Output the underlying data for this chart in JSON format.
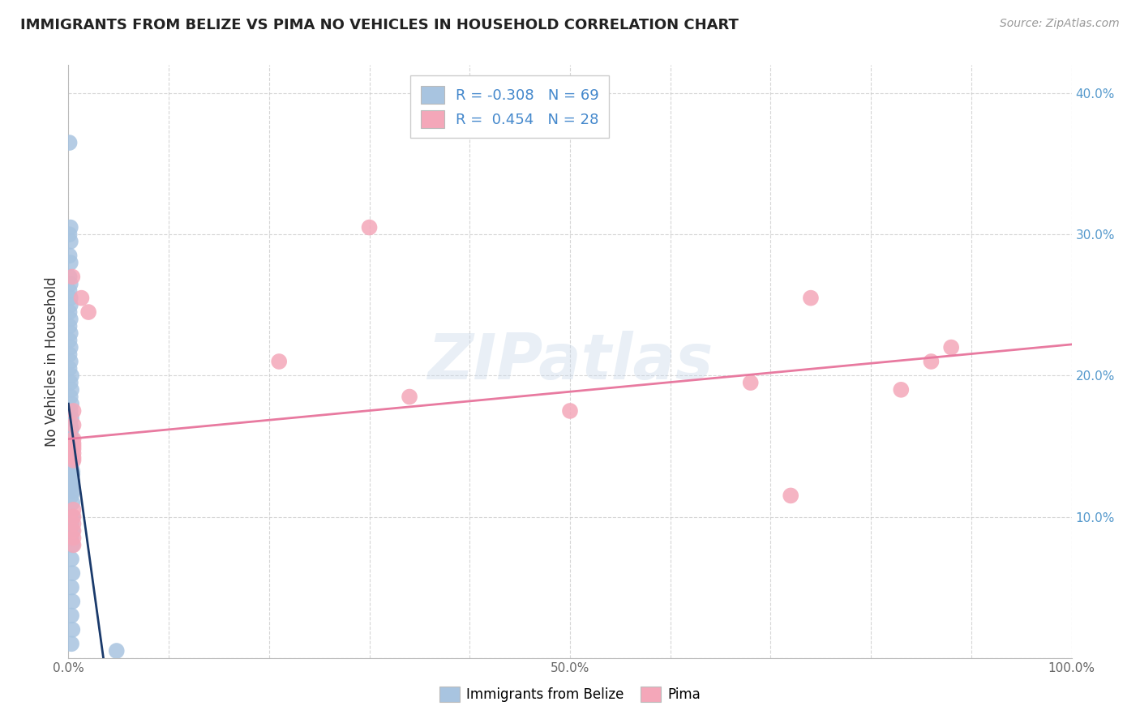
{
  "title": "IMMIGRANTS FROM BELIZE VS PIMA NO VEHICLES IN HOUSEHOLD CORRELATION CHART",
  "source": "Source: ZipAtlas.com",
  "ylabel": "No Vehicles in Household",
  "xlim": [
    0.0,
    1.0
  ],
  "ylim": [
    0.0,
    0.42
  ],
  "xtick_positions": [
    0.0,
    0.1,
    0.2,
    0.3,
    0.4,
    0.5,
    0.6,
    0.7,
    0.8,
    0.9,
    1.0
  ],
  "ytick_positions": [
    0.0,
    0.1,
    0.2,
    0.3,
    0.4
  ],
  "xticklabels": [
    "0.0%",
    "",
    "",
    "",
    "",
    "50.0%",
    "",
    "",
    "",
    "",
    "100.0%"
  ],
  "yticklabels": [
    "",
    "10.0%",
    "20.0%",
    "30.0%",
    "40.0%"
  ],
  "blue_R": -0.308,
  "blue_N": 69,
  "pink_R": 0.454,
  "pink_N": 28,
  "blue_color": "#a8c4e0",
  "pink_color": "#f4a7b9",
  "blue_line_color": "#1a3a6b",
  "pink_line_color": "#e87aa0",
  "watermark": "ZIPatlas",
  "blue_points_x": [
    0.001,
    0.002,
    0.001,
    0.002,
    0.001,
    0.002,
    0.001,
    0.002,
    0.001,
    0.002,
    0.002,
    0.001,
    0.002,
    0.001,
    0.002,
    0.001,
    0.002,
    0.001,
    0.002,
    0.001,
    0.003,
    0.002,
    0.003,
    0.002,
    0.003,
    0.002,
    0.003,
    0.002,
    0.003,
    0.002,
    0.003,
    0.002,
    0.003,
    0.002,
    0.003,
    0.002,
    0.003,
    0.002,
    0.003,
    0.002,
    0.004,
    0.003,
    0.004,
    0.003,
    0.004,
    0.003,
    0.004,
    0.003,
    0.004,
    0.003,
    0.004,
    0.003,
    0.004,
    0.003,
    0.004,
    0.003,
    0.004,
    0.003,
    0.004,
    0.003,
    0.004,
    0.003,
    0.004,
    0.003,
    0.004,
    0.003,
    0.004,
    0.003,
    0.048
  ],
  "blue_points_y": [
    0.365,
    0.305,
    0.3,
    0.295,
    0.285,
    0.28,
    0.27,
    0.265,
    0.26,
    0.255,
    0.25,
    0.245,
    0.24,
    0.235,
    0.23,
    0.225,
    0.22,
    0.215,
    0.21,
    0.205,
    0.2,
    0.195,
    0.19,
    0.185,
    0.18,
    0.175,
    0.17,
    0.165,
    0.162,
    0.158,
    0.155,
    0.152,
    0.15,
    0.148,
    0.145,
    0.142,
    0.14,
    0.155,
    0.15,
    0.145,
    0.14,
    0.135,
    0.132,
    0.128,
    0.125,
    0.122,
    0.118,
    0.115,
    0.11,
    0.15,
    0.148,
    0.145,
    0.142,
    0.138,
    0.13,
    0.125,
    0.1,
    0.095,
    0.09,
    0.085,
    0.08,
    0.07,
    0.06,
    0.05,
    0.04,
    0.03,
    0.02,
    0.01,
    0.005
  ],
  "pink_points_x": [
    0.004,
    0.013,
    0.02,
    0.005,
    0.005,
    0.005,
    0.005,
    0.005,
    0.21,
    0.3,
    0.34,
    0.5,
    0.68,
    0.72,
    0.74,
    0.83,
    0.86,
    0.88,
    0.005,
    0.005,
    0.005,
    0.005,
    0.005,
    0.005,
    0.005,
    0.005,
    0.005,
    0.005
  ],
  "pink_points_y": [
    0.27,
    0.255,
    0.245,
    0.175,
    0.165,
    0.152,
    0.148,
    0.142,
    0.21,
    0.305,
    0.185,
    0.175,
    0.195,
    0.115,
    0.255,
    0.19,
    0.21,
    0.22,
    0.105,
    0.1,
    0.155,
    0.15,
    0.145,
    0.14,
    0.095,
    0.09,
    0.085,
    0.08
  ]
}
